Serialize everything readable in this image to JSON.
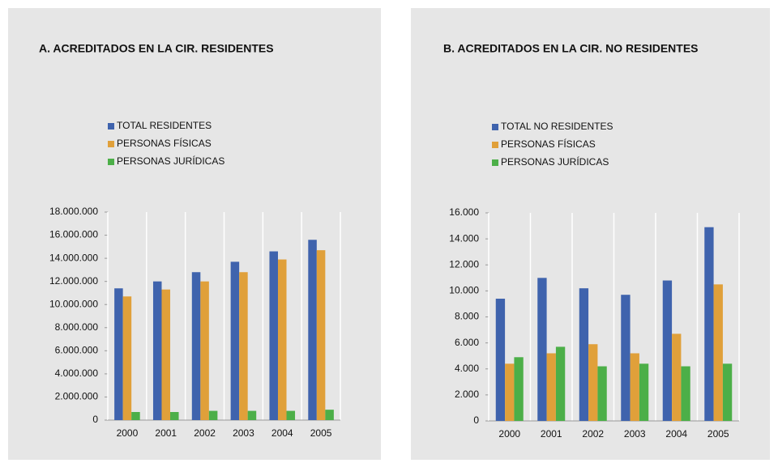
{
  "chart_data": [
    {
      "type": "bar",
      "title": "A. ACREDITADOS EN LA CIR. RESIDENTES",
      "categories": [
        "2000",
        "2001",
        "2002",
        "2003",
        "2004",
        "2005"
      ],
      "series": [
        {
          "name": "TOTAL RESIDENTES",
          "color": "#3f63ad",
          "values": [
            11400000,
            12000000,
            12800000,
            13700000,
            14600000,
            15600000
          ]
        },
        {
          "name": "PERSONAS FÍSICAS",
          "color": "#e0a03a",
          "values": [
            10700000,
            11300000,
            12000000,
            12800000,
            13900000,
            14700000
          ]
        },
        {
          "name": "PERSONAS JURÍDICAS",
          "color": "#4caf48",
          "values": [
            700000,
            700000,
            800000,
            800000,
            800000,
            900000
          ]
        }
      ],
      "ylim": [
        0,
        18000000
      ],
      "yticks": [
        0,
        {
          "value": 2000000,
          "label": "2.000.000"
        },
        {
          "value": 4000000,
          "label": "4.000.000"
        },
        {
          "value": 6000000,
          "label": "6.000.000"
        },
        {
          "value": 8000000,
          "label": "8.000.000"
        },
        {
          "value": 10000000,
          "label": "10.000.000"
        },
        {
          "value": 12000000,
          "label": "12.000.000"
        },
        {
          "value": 14000000,
          "label": "14.000.000"
        },
        {
          "value": 16000000,
          "label": "16.000.000"
        },
        {
          "value": 18000000,
          "label": "18.000.000"
        }
      ]
    },
    {
      "type": "bar",
      "title": "B. ACREDITADOS EN LA CIR. NO RESIDENTES",
      "categories": [
        "2000",
        "2001",
        "2002",
        "2003",
        "2004",
        "2005"
      ],
      "series": [
        {
          "name": "TOTAL  NO RESIDENTES",
          "color": "#3f63ad",
          "values": [
            9400,
            11000,
            10200,
            9700,
            10800,
            14900
          ]
        },
        {
          "name": "PERSONAS FÍSICAS",
          "color": "#e0a03a",
          "values": [
            4400,
            5200,
            5900,
            5200,
            6700,
            10500
          ]
        },
        {
          "name": "PERSONAS JURÍDICAS",
          "color": "#4caf48",
          "values": [
            4900,
            5700,
            4200,
            4400,
            4200,
            4400
          ]
        }
      ],
      "ylim": [
        0,
        16000
      ],
      "yticks": [
        0,
        {
          "value": 2000,
          "label": "2.000"
        },
        {
          "value": 4000,
          "label": "4.000"
        },
        {
          "value": 6000,
          "label": "6.000"
        },
        {
          "value": 8000,
          "label": "8.000"
        },
        {
          "value": 10000,
          "label": "10.000"
        },
        {
          "value": 12000,
          "label": "12.000"
        },
        {
          "value": 14000,
          "label": "14.000"
        },
        {
          "value": 16000,
          "label": "16.000"
        }
      ]
    }
  ]
}
